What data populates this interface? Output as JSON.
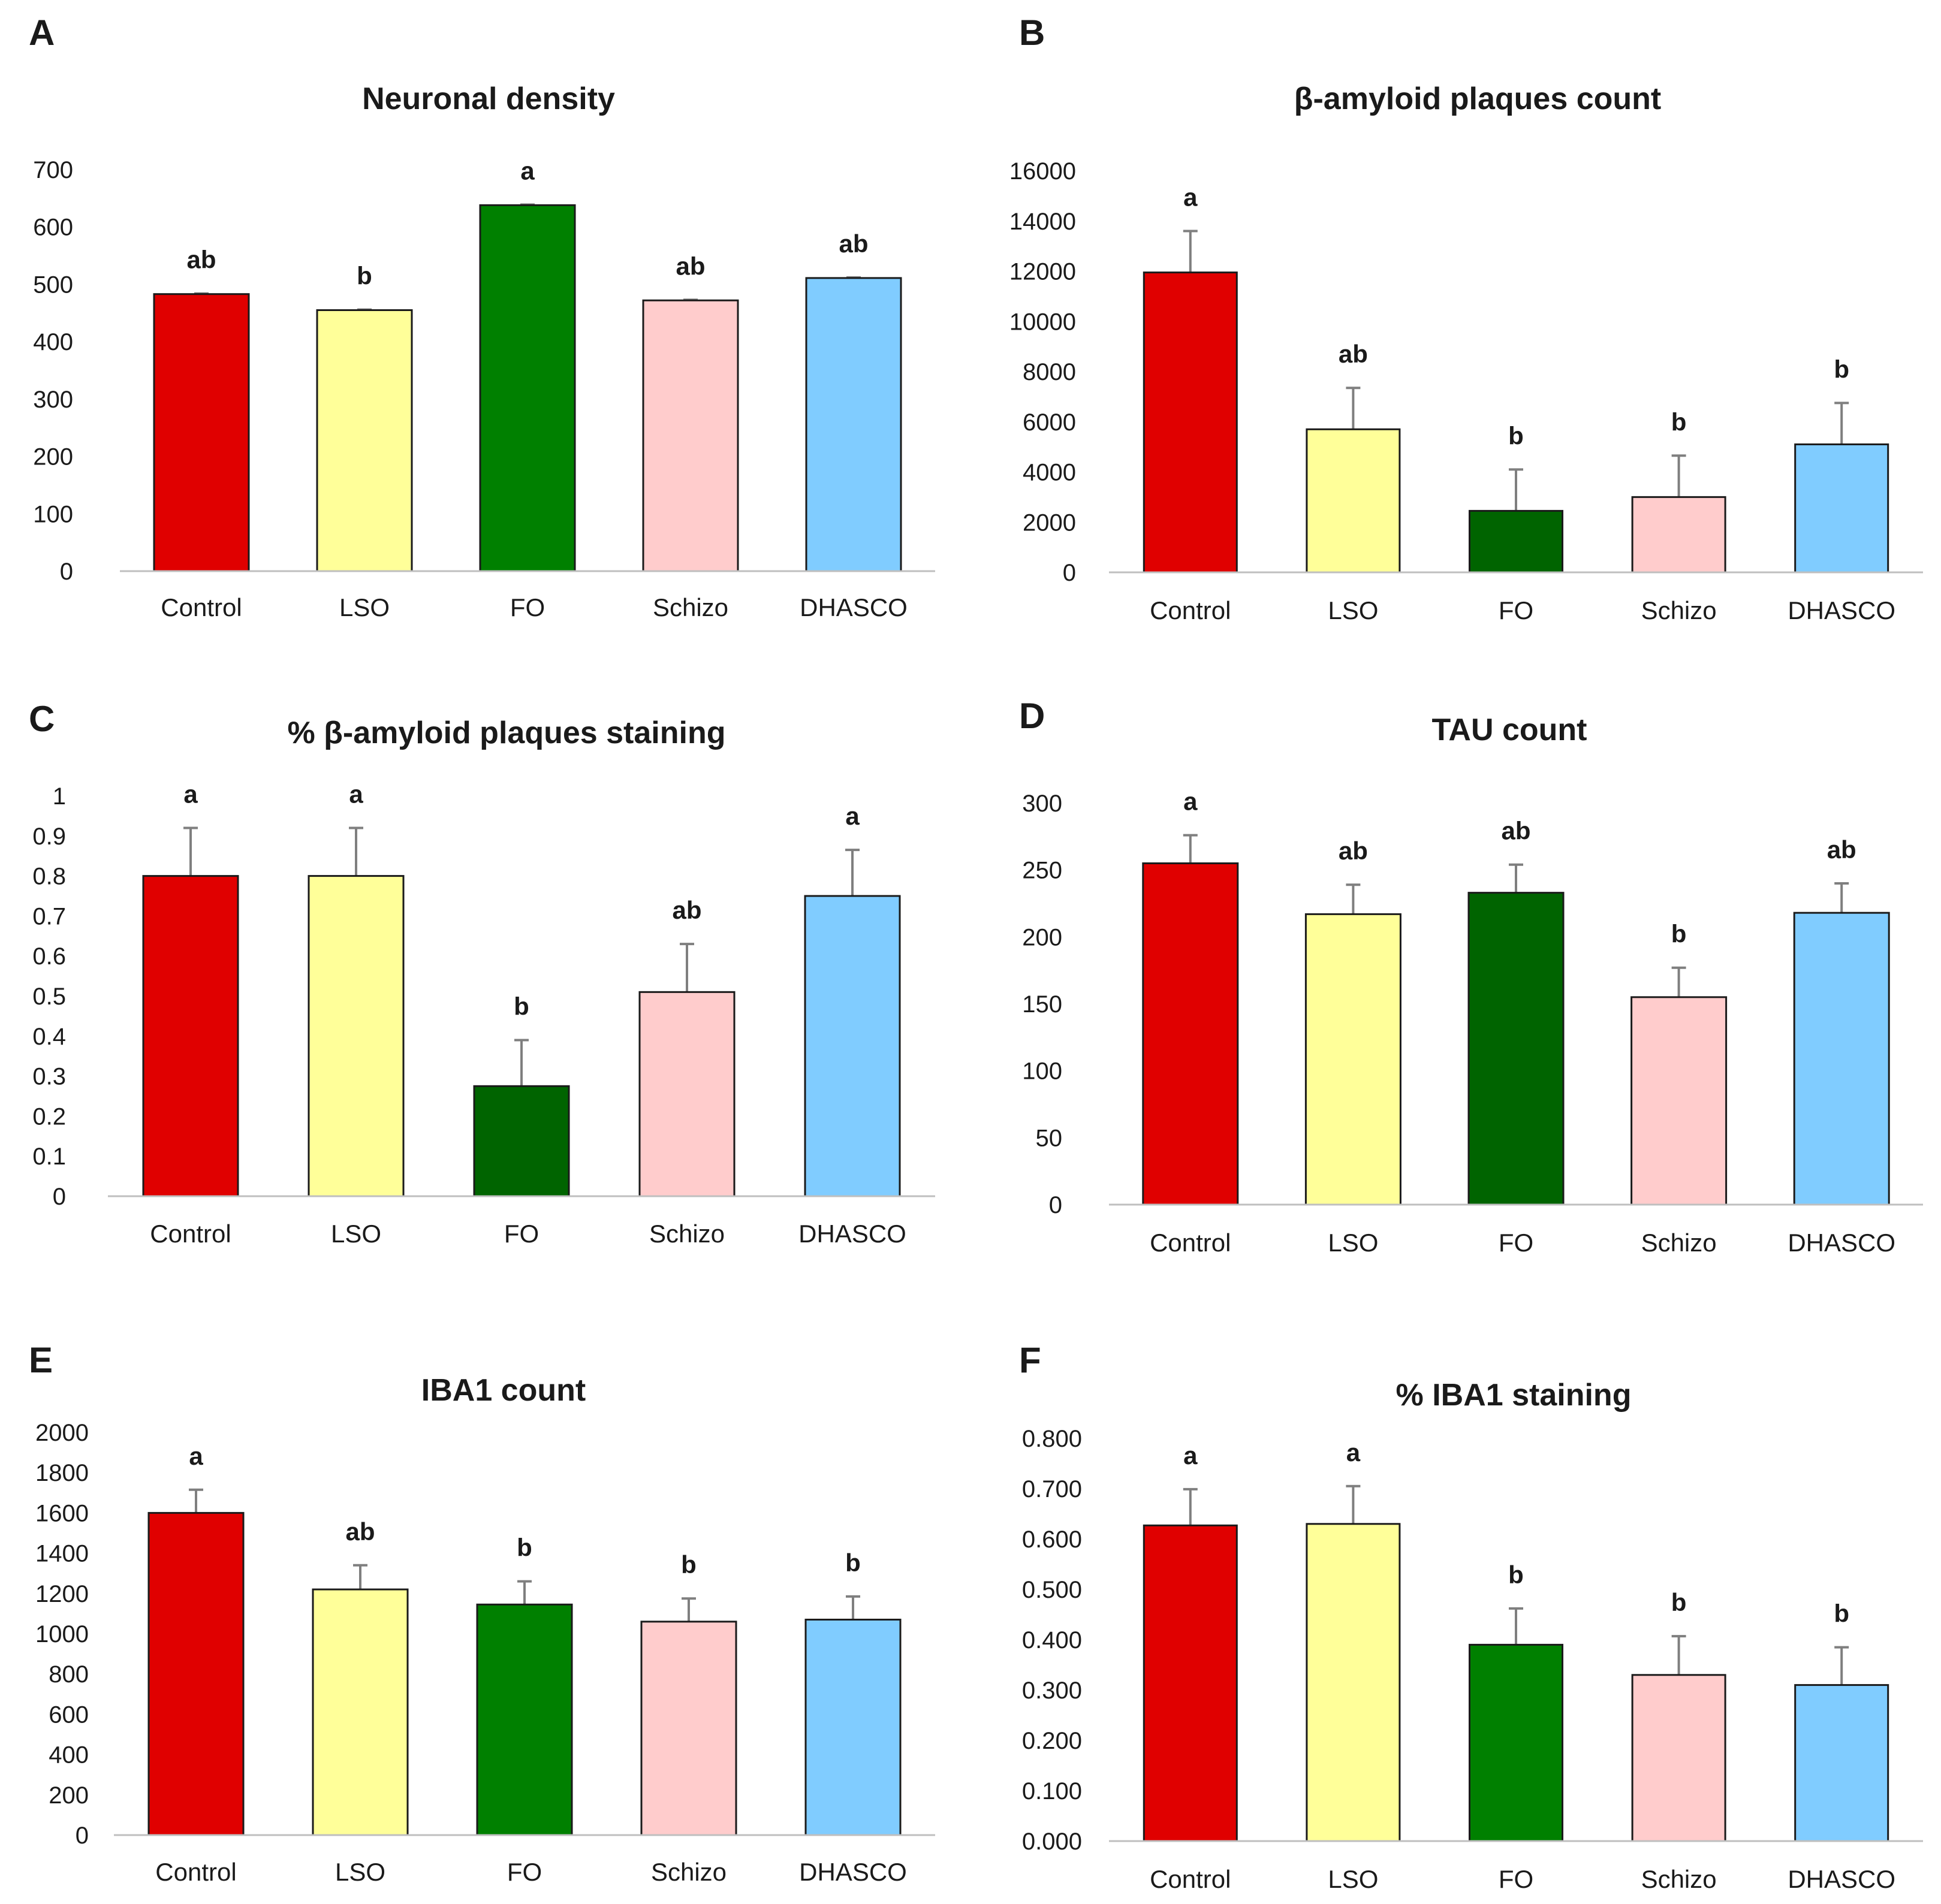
{
  "colors": {
    "Control": "#e00000",
    "LSO": "#ffff99",
    "FO_light": "#008000",
    "FO_dark": "#006400",
    "Schizo": "#ffcccc",
    "DHASCO": "#80ccff"
  },
  "chart_data": [
    {
      "panel": "A",
      "type": "bar",
      "title": "Neuronal density",
      "categories": [
        "Control",
        "LSO",
        "FO",
        "Schizo",
        "DHASCO"
      ],
      "values": [
        483,
        455,
        638,
        472,
        511
      ],
      "errors": [
        1,
        1,
        1,
        1,
        1
      ],
      "letters": [
        "ab",
        "b",
        "a",
        "ab",
        "ab"
      ],
      "ylim": [
        0,
        700
      ],
      "ticks": [
        "0",
        "100",
        "200",
        "300",
        "400",
        "500",
        "600",
        "700"
      ],
      "fo_shade": "light"
    },
    {
      "panel": "B",
      "type": "bar",
      "title": "β-amyloid plaques count",
      "categories": [
        "Control",
        "LSO",
        "FO",
        "Schizo",
        "DHASCO"
      ],
      "values": [
        11950,
        5700,
        2450,
        3000,
        5100
      ],
      "errors": [
        1650,
        1650,
        1650,
        1650,
        1650
      ],
      "letters": [
        "a",
        "ab",
        "b",
        "b",
        "b"
      ],
      "ylim": [
        0,
        16000
      ],
      "ticks": [
        "0",
        "2000",
        "4000",
        "6000",
        "8000",
        "10000",
        "12000",
        "14000",
        "16000"
      ],
      "fo_shade": "dark"
    },
    {
      "panel": "C",
      "type": "bar",
      "title": "% β-amyloid plaques staining",
      "categories": [
        "Control",
        "LSO",
        "FO",
        "Schizo",
        "DHASCO"
      ],
      "values": [
        0.8,
        0.8,
        0.275,
        0.51,
        0.75
      ],
      "errors": [
        0.12,
        0.12,
        0.115,
        0.12,
        0.115
      ],
      "letters": [
        "a",
        "a",
        "b",
        "ab",
        "a"
      ],
      "ylim": [
        0,
        1
      ],
      "ticks": [
        "0",
        "0.1",
        "0.2",
        "0.3",
        "0.4",
        "0.5",
        "0.6",
        "0.7",
        "0.8",
        "0.9",
        "1"
      ],
      "fo_shade": "dark"
    },
    {
      "panel": "D",
      "type": "bar",
      "title": "TAU count",
      "categories": [
        "Control",
        "LSO",
        "FO",
        "Schizo",
        "DHASCO"
      ],
      "values": [
        255,
        217,
        233,
        155,
        218
      ],
      "errors": [
        21,
        22,
        21,
        22,
        22
      ],
      "letters": [
        "a",
        "ab",
        "ab",
        "b",
        "ab"
      ],
      "ylim": [
        0,
        300
      ],
      "ticks": [
        "0",
        "50",
        "100",
        "150",
        "200",
        "250",
        "300"
      ],
      "fo_shade": "dark"
    },
    {
      "panel": "E",
      "type": "bar",
      "title": "IBA1 count",
      "categories": [
        "Control",
        "LSO",
        "FO",
        "Schizo",
        "DHASCO"
      ],
      "values": [
        1600,
        1220,
        1145,
        1060,
        1070
      ],
      "errors": [
        115,
        120,
        115,
        115,
        115
      ],
      "letters": [
        "a",
        "ab",
        "b",
        "b",
        "b"
      ],
      "ylim": [
        0,
        2000
      ],
      "ticks": [
        "0",
        "200",
        "400",
        "600",
        "800",
        "1000",
        "1200",
        "1400",
        "1600",
        "1800",
        "2000"
      ],
      "fo_shade": "light"
    },
    {
      "panel": "F",
      "type": "bar",
      "title": "% IBA1 staining",
      "categories": [
        "Control",
        "LSO",
        "FO",
        "Schizo",
        "DHASCO"
      ],
      "values": [
        0.627,
        0.63,
        0.39,
        0.33,
        0.31
      ],
      "errors": [
        0.072,
        0.075,
        0.072,
        0.077,
        0.075
      ],
      "letters": [
        "a",
        "a",
        "b",
        "b",
        "b"
      ],
      "ylim": [
        0,
        0.8
      ],
      "ticks": [
        "0.000",
        "0.100",
        "0.200",
        "0.300",
        "0.400",
        "0.500",
        "0.600",
        "0.700",
        "0.800"
      ],
      "fo_shade": "light"
    }
  ]
}
